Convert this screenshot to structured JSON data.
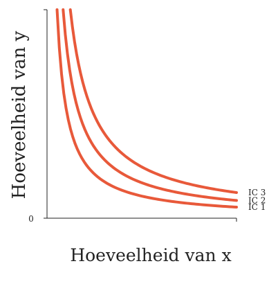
{
  "chart_data": {
    "type": "line",
    "title": "",
    "xlabel": "Hoeveelheid van x",
    "ylabel": "Hoeveelheid van y",
    "origin_label": "0",
    "xlim": [
      0,
      100
    ],
    "ylim": [
      0,
      100
    ],
    "grid": false,
    "legend": "none",
    "curve_color": "#e8593a",
    "axis_color": "#222222",
    "series": [
      {
        "name": "IC 1",
        "k": 530
      },
      {
        "name": "IC 2",
        "k": 850
      },
      {
        "name": "IC 3",
        "k": 1230
      }
    ]
  }
}
